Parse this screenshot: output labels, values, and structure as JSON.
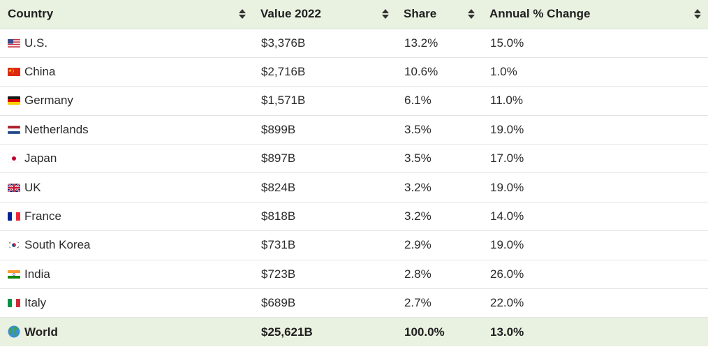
{
  "table": {
    "headers": {
      "country": "Country",
      "value": "Value 2022",
      "share": "Share",
      "change": "Annual % Change"
    },
    "rows": [
      {
        "country": "U.S.",
        "flag": "us-flag-icon",
        "value": "$3,376B",
        "share": "13.2%",
        "change": "15.0%"
      },
      {
        "country": "China",
        "flag": "china-flag-icon",
        "value": "$2,716B",
        "share": "10.6%",
        "change": "1.0%"
      },
      {
        "country": "Germany",
        "flag": "germany-flag-icon",
        "value": "$1,571B",
        "share": "6.1%",
        "change": "11.0%"
      },
      {
        "country": "Netherlands",
        "flag": "netherlands-flag-icon",
        "value": "$899B",
        "share": "3.5%",
        "change": "19.0%"
      },
      {
        "country": "Japan",
        "flag": "japan-flag-icon",
        "value": "$897B",
        "share": "3.5%",
        "change": "17.0%"
      },
      {
        "country": "UK",
        "flag": "uk-flag-icon",
        "value": "$824B",
        "share": "3.2%",
        "change": "19.0%"
      },
      {
        "country": "France",
        "flag": "france-flag-icon",
        "value": "$818B",
        "share": "3.2%",
        "change": "14.0%"
      },
      {
        "country": "South Korea",
        "flag": "south-korea-flag-icon",
        "value": "$731B",
        "share": "2.9%",
        "change": "19.0%"
      },
      {
        "country": "India",
        "flag": "india-flag-icon",
        "value": "$723B",
        "share": "2.8%",
        "change": "26.0%"
      },
      {
        "country": "Italy",
        "flag": "italy-flag-icon",
        "value": "$689B",
        "share": "2.7%",
        "change": "22.0%"
      }
    ],
    "total": {
      "country": "World",
      "icon": "globe-icon",
      "value": "$25,621B",
      "share": "100.0%",
      "change": "13.0%"
    }
  },
  "colors": {
    "header_bg": "#e9f2e1",
    "total_bg": "#e9f2e1",
    "row_divider": "#e3e3e3",
    "text": "#2b2b2b"
  }
}
